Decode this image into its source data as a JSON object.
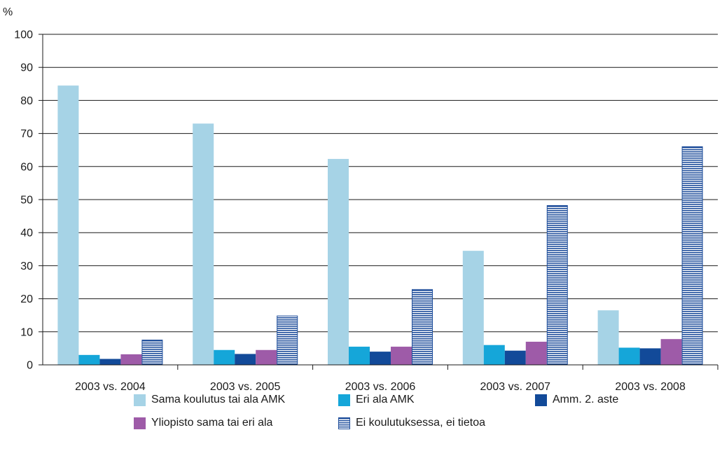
{
  "chart_data": {
    "type": "bar",
    "ylabel": "%",
    "ylim": [
      0,
      100
    ],
    "yticks": [
      0,
      10,
      20,
      30,
      40,
      50,
      60,
      70,
      80,
      90,
      100
    ],
    "grid": true,
    "legend_position": "bottom",
    "categories": [
      "2003 vs. 2004",
      "2003 vs. 2005",
      "2003 vs. 2006",
      "2003 vs. 2007",
      "2003 vs. 2008"
    ],
    "series": [
      {
        "name": "Sama koulutus tai ala AMK",
        "color": "#a6d3e6",
        "pattern": "solid",
        "values": [
          84.5,
          73,
          62.3,
          34.5,
          16.5
        ]
      },
      {
        "name": "Eri ala AMK",
        "color": "#15a6d9",
        "pattern": "solid",
        "values": [
          3,
          4.5,
          5.5,
          6,
          5.2
        ]
      },
      {
        "name": "Amm. 2. aste",
        "color": "#124a99",
        "pattern": "solid",
        "values": [
          1.8,
          3.3,
          4,
          4.3,
          5
        ]
      },
      {
        "name": "Yliopisto sama tai eri ala",
        "color": "#9e5ba8",
        "pattern": "solid",
        "values": [
          3.2,
          4.5,
          5.5,
          7,
          7.8
        ]
      },
      {
        "name": "Ei koulutuksessa, ei tietoa",
        "color": "#1f4e9b",
        "pattern": "horizontal-stripes",
        "values": [
          7.5,
          14.8,
          22.8,
          48.2,
          66
        ]
      }
    ]
  }
}
